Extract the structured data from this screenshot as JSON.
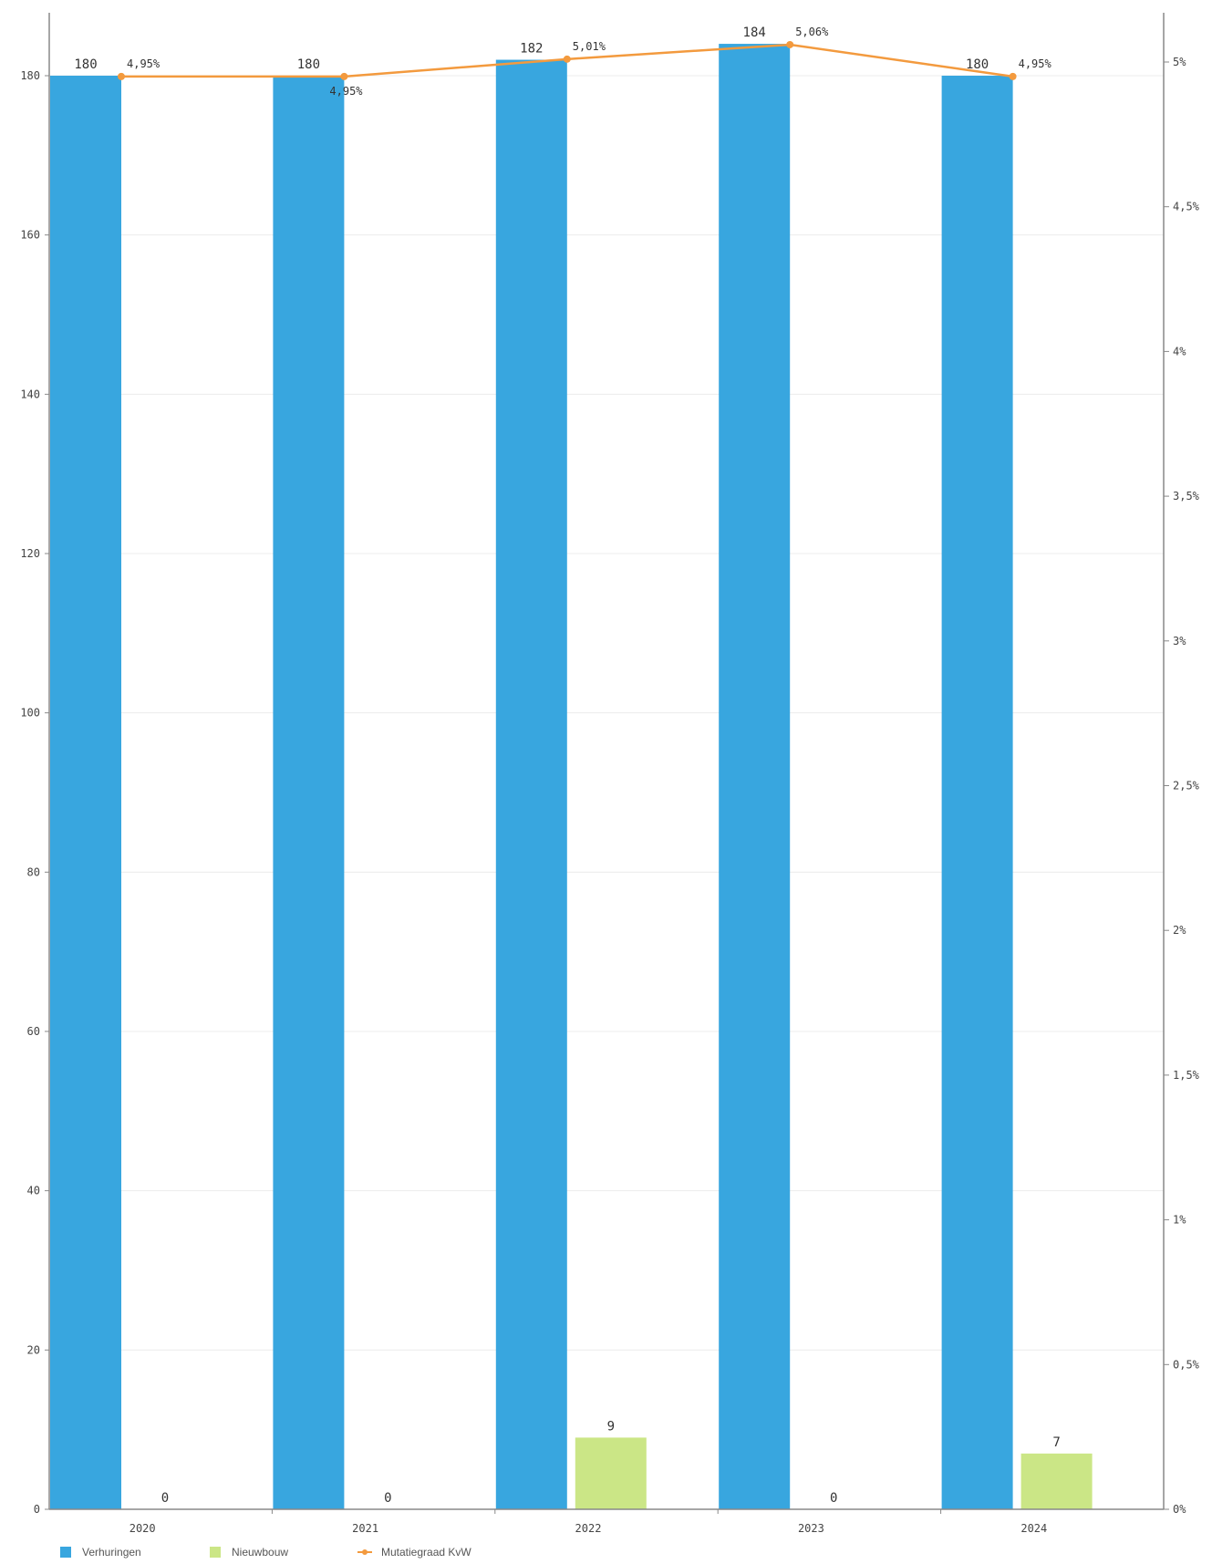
{
  "chart_data": {
    "type": "bar",
    "categories": [
      "2020",
      "2021",
      "2022",
      "2023",
      "2024"
    ],
    "series": [
      {
        "name": "Verhuringen",
        "type": "bar",
        "axis": "left",
        "color": "#38a6df",
        "values": [
          180,
          180,
          182,
          184,
          180
        ],
        "labels": [
          "180",
          "180",
          "182",
          "184",
          "180"
        ]
      },
      {
        "name": "Nieuwbouw",
        "type": "bar",
        "axis": "left",
        "color": "#cbe686",
        "values": [
          0,
          0,
          9,
          0,
          7
        ],
        "labels": [
          "0",
          "0",
          "9",
          "0",
          "7"
        ]
      },
      {
        "name": "Mutatiegraad KvW",
        "type": "line",
        "axis": "right",
        "color": "#f39a3e",
        "values": [
          4.95,
          4.95,
          5.01,
          5.06,
          4.95
        ],
        "labels": [
          "4,95%",
          "4,95%",
          "5,01%",
          "5,06%",
          "4,95%"
        ]
      }
    ],
    "y_left": {
      "ylim": [
        0,
        188
      ],
      "ticks": [
        0,
        20,
        40,
        60,
        80,
        100,
        120,
        140,
        160,
        180
      ],
      "tick_labels": [
        "0",
        "20",
        "40",
        "60",
        "80",
        "100",
        "120",
        "140",
        "160",
        "180"
      ]
    },
    "y_right": {
      "ylim": [
        0,
        5.2
      ],
      "ticks": [
        0,
        0.5,
        1,
        1.5,
        2,
        2.5,
        3,
        3.5,
        4,
        4.5,
        5
      ],
      "tick_labels": [
        "0%",
        "0,5%",
        "1%",
        "1,5%",
        "2%",
        "2,5%",
        "3%",
        "3,5%",
        "4%",
        "4,5%",
        "5%"
      ]
    },
    "grid": true,
    "legend_position": "bottom-left",
    "title": "",
    "xlabel": "",
    "ylabel": ""
  }
}
